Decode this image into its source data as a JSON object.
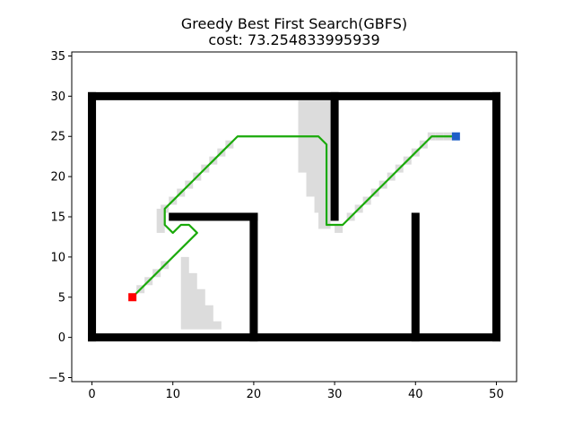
{
  "title_line1": "Greedy Best First Search(GBFS)",
  "title_line2": "cost: 73.254833995939",
  "chart_data": {
    "type": "scatter",
    "title": "Greedy Best First Search(GBFS)",
    "subtitle": "cost: 73.254833995939",
    "xlim": [
      -2.5,
      52.5
    ],
    "ylim": [
      -5.5,
      35.5
    ],
    "xticks": [
      0,
      10,
      20,
      30,
      40,
      50
    ],
    "yticks": [
      -5,
      0,
      5,
      10,
      15,
      20,
      25,
      30,
      35
    ],
    "grid": false,
    "obstacle_color": "#000000",
    "explored_color": "#dcdcdc",
    "path_color": "#1aaa0a",
    "start_color": "#ff0000",
    "goal_color": "#1f5fc8",
    "start": [
      5,
      5
    ],
    "goal": [
      45,
      25
    ],
    "obstacles": [
      {
        "from": [
          0,
          0
        ],
        "to": [
          50,
          0
        ]
      },
      {
        "from": [
          0,
          30
        ],
        "to": [
          50,
          30
        ]
      },
      {
        "from": [
          0,
          0
        ],
        "to": [
          0,
          30
        ]
      },
      {
        "from": [
          50,
          0
        ],
        "to": [
          50,
          30
        ]
      },
      {
        "from": [
          10,
          15
        ],
        "to": [
          20,
          15
        ]
      },
      {
        "from": [
          20,
          0
        ],
        "to": [
          20,
          15
        ]
      },
      {
        "from": [
          30,
          15
        ],
        "to": [
          30,
          30
        ]
      },
      {
        "from": [
          40,
          0
        ],
        "to": [
          40,
          15
        ]
      }
    ],
    "explored_region_1": [
      [
        11,
        1
      ],
      [
        11,
        10
      ],
      [
        12,
        10
      ],
      [
        12,
        8
      ],
      [
        13,
        8
      ],
      [
        13,
        6
      ],
      [
        14,
        6
      ],
      [
        14,
        4
      ],
      [
        15,
        4
      ],
      [
        15,
        2
      ],
      [
        16,
        2
      ],
      [
        16,
        1
      ]
    ],
    "explored_region_2": [
      [
        25.5,
        20.5
      ],
      [
        25.5,
        29.5
      ],
      [
        29.5,
        29.5
      ],
      [
        29.5,
        13.5
      ],
      [
        28,
        13.5
      ],
      [
        28,
        15.5
      ],
      [
        27.5,
        15.5
      ],
      [
        27.5,
        17.5
      ],
      [
        26.5,
        17.5
      ],
      [
        26.5,
        20.5
      ]
    ],
    "explored_cells": [
      [
        6,
        6
      ],
      [
        7,
        7
      ],
      [
        8,
        8
      ],
      [
        9,
        9
      ],
      [
        8.5,
        13.5
      ],
      [
        8.5,
        14.5
      ],
      [
        8.5,
        15.5
      ],
      [
        9,
        16
      ],
      [
        10,
        17
      ],
      [
        11,
        18
      ],
      [
        12,
        19
      ],
      [
        13,
        20
      ],
      [
        14,
        21
      ],
      [
        15,
        22
      ],
      [
        16,
        23
      ],
      [
        17,
        24
      ],
      [
        30.5,
        13.5
      ],
      [
        32,
        15
      ],
      [
        33,
        16
      ],
      [
        34,
        17
      ],
      [
        35,
        18
      ],
      [
        36,
        19
      ],
      [
        37,
        20
      ],
      [
        38,
        21
      ],
      [
        39,
        22
      ],
      [
        40,
        23
      ],
      [
        41,
        24
      ],
      [
        42,
        25
      ],
      [
        43,
        25
      ],
      [
        44,
        25
      ]
    ],
    "path": [
      [
        5,
        5
      ],
      [
        13,
        13
      ],
      [
        12,
        14
      ],
      [
        11,
        14
      ],
      [
        10,
        13
      ],
      [
        9,
        14
      ],
      [
        9,
        16
      ],
      [
        10,
        17
      ],
      [
        11,
        18
      ],
      [
        12,
        19
      ],
      [
        13,
        20
      ],
      [
        14,
        21
      ],
      [
        15,
        22
      ],
      [
        16,
        23
      ],
      [
        17,
        24
      ],
      [
        18,
        25
      ],
      [
        19,
        25
      ],
      [
        20,
        25
      ],
      [
        21,
        25
      ],
      [
        22,
        25
      ],
      [
        23,
        25
      ],
      [
        24,
        25
      ],
      [
        25,
        25
      ],
      [
        26,
        25
      ],
      [
        27,
        25
      ],
      [
        28,
        25
      ],
      [
        29,
        24
      ],
      [
        29,
        14
      ],
      [
        30,
        14
      ],
      [
        31,
        14
      ],
      [
        32,
        15
      ],
      [
        33,
        16
      ],
      [
        34,
        17
      ],
      [
        35,
        18
      ],
      [
        36,
        19
      ],
      [
        37,
        20
      ],
      [
        38,
        21
      ],
      [
        39,
        22
      ],
      [
        40,
        23
      ],
      [
        41,
        24
      ],
      [
        42,
        25
      ],
      [
        43,
        25
      ],
      [
        44,
        25
      ],
      [
        45,
        25
      ]
    ]
  }
}
